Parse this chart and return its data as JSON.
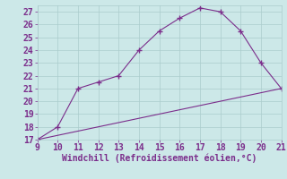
{
  "xlabel": "Windchill (Refroidissement éolien,°C)",
  "line1_x": [
    9,
    10,
    11,
    12,
    13,
    14,
    15,
    16,
    17,
    18,
    19,
    20,
    21
  ],
  "line1_y": [
    17.0,
    18.0,
    21.0,
    21.5,
    22.0,
    24.0,
    25.5,
    26.5,
    27.3,
    27.0,
    25.5,
    23.0,
    21.0
  ],
  "line2_x": [
    9,
    21
  ],
  "line2_y": [
    17.0,
    21.0
  ],
  "xlim": [
    9,
    21
  ],
  "ylim": [
    17,
    27.5
  ],
  "xticks": [
    9,
    10,
    11,
    12,
    13,
    14,
    15,
    16,
    17,
    18,
    19,
    20,
    21
  ],
  "yticks": [
    17,
    18,
    19,
    20,
    21,
    22,
    23,
    24,
    25,
    26,
    27
  ],
  "line_color": "#7b2d8b",
  "bg_color": "#cce8e8",
  "grid_color": "#aacccc",
  "text_color": "#7b2d8b",
  "tick_fontsize": 7
}
